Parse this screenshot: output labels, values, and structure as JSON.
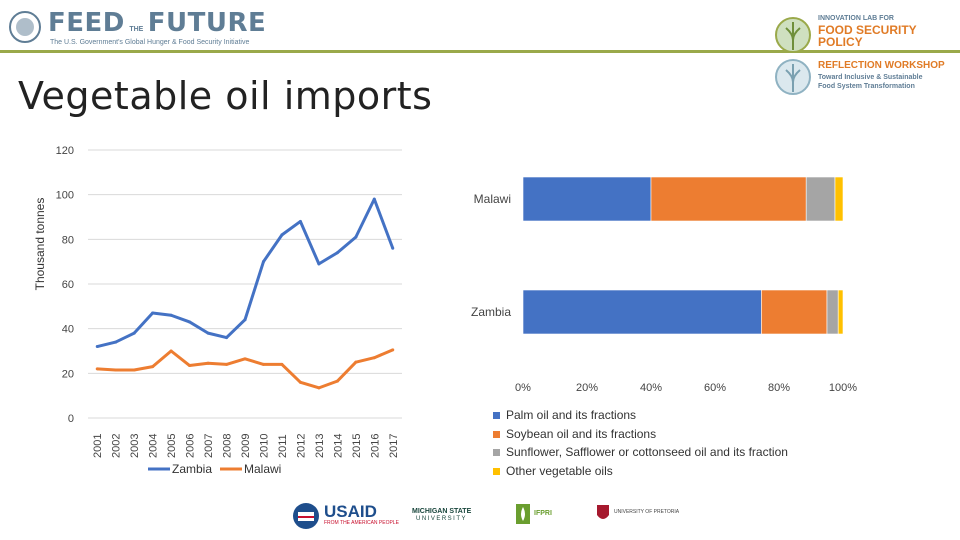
{
  "header": {
    "ftf_word_left": "FEED",
    "ftf_word_the": "THE",
    "ftf_word_right": "FUTURE",
    "ftf_tagline": "The U.S. Government's Global Hunger & Food Security Initiative",
    "lab_line1": "INNOVATION LAB FOR",
    "lab_line2a": "FOOD SECURITY",
    "lab_line2b": "POLICY",
    "workshop_title": "REFLECTION WORKSHOP",
    "workshop_sub1": "Toward Inclusive & Sustainable",
    "workshop_sub2": "Food System Transformation"
  },
  "slide": {
    "title": "Vegetable oil imports"
  },
  "colors": {
    "zambia": "#4472C4",
    "malawi": "#ED7D31",
    "palm": "#4472C4",
    "soy": "#ED7D31",
    "sunflower": "#A5A5A5",
    "other": "#FFC000",
    "accent": "#9aa94a"
  },
  "chart_data": [
    {
      "type": "line",
      "ylabel": "Thousand tonnes",
      "ylim": [
        0,
        120
      ],
      "yticks": [
        "0",
        "20",
        "40",
        "60",
        "80",
        "100",
        "120"
      ],
      "x": [
        "2001",
        "2002",
        "2003",
        "2004",
        "2005",
        "2006",
        "2007",
        "2008",
        "2009",
        "2010",
        "2011",
        "2012",
        "2013",
        "2014",
        "2015",
        "2016",
        "2017"
      ],
      "series": [
        {
          "name": "Zambia",
          "values": [
            32,
            34,
            38,
            47,
            46,
            43,
            38,
            36,
            44,
            70,
            82,
            88,
            69,
            74,
            81,
            98,
            76
          ]
        },
        {
          "name": "Malawi",
          "values": [
            22,
            21.5,
            21.5,
            23,
            30,
            23.5,
            24.5,
            24,
            26.5,
            24,
            24,
            16,
            13.5,
            16.5,
            25,
            27,
            30.5
          ]
        }
      ],
      "legend": "bottom",
      "grid": true
    },
    {
      "type": "bar",
      "orientation": "horizontal",
      "stacked": "percent",
      "categories": [
        "Malawi",
        "Zambia"
      ],
      "xticks": [
        "0%",
        "20%",
        "40%",
        "60%",
        "80%",
        "100%"
      ],
      "series": [
        {
          "name": "Palm oil and its fractions",
          "values": [
            40,
            74.5
          ]
        },
        {
          "name": "Soybean oil and its fractions",
          "values": [
            48.5,
            20.5
          ]
        },
        {
          "name": "Sunflower, Safflower or cottonseed oil and its fraction",
          "values": [
            9,
            3.5
          ]
        },
        {
          "name": "Other vegetable oils",
          "values": [
            2.5,
            1.5
          ]
        }
      ],
      "legend": "bottom-left"
    }
  ],
  "sponsors": {
    "usaid": "USAID",
    "usaid_sub": "FROM THE AMERICAN PEOPLE",
    "msu": "MICHIGAN STATE",
    "msu_sub": "UNIVERSITY",
    "ifpri": "IFPRI",
    "up": "UNIVERSITY OF PRETORIA"
  }
}
